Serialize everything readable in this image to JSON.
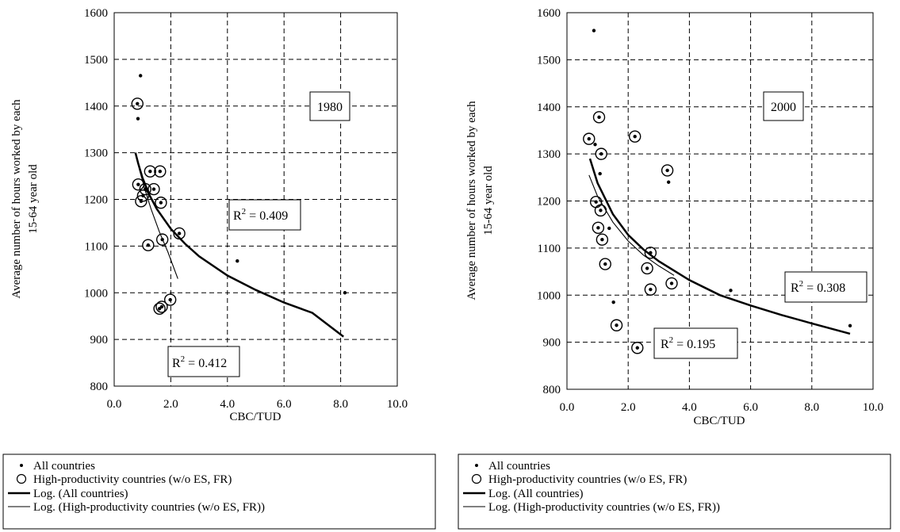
{
  "chart_data": [
    {
      "type": "scatter",
      "annotation": "1980",
      "xlabel": "CBC/TUD",
      "ylabel_lines": [
        "Average number of hours worked by each",
        "15-64 year old"
      ],
      "xlim": [
        0,
        10
      ],
      "ylim": [
        800,
        1600
      ],
      "xticks": [
        "0.0",
        "2.0",
        "4.0",
        "6.0",
        "8.0",
        "10.0"
      ],
      "yticks": [
        "800",
        "900",
        "1000",
        "1100",
        "1200",
        "1300",
        "1400",
        "1500",
        "1600"
      ],
      "grid": true,
      "series": [
        {
          "name": "All countries",
          "marker": "dot",
          "points": [
            [
              0.93,
              1465
            ],
            [
              0.82,
              1405
            ],
            [
              0.84,
              1373
            ],
            [
              0.85,
              1232
            ],
            [
              0.95,
              1196
            ],
            [
              1.02,
              1208
            ],
            [
              1.1,
              1222
            ],
            [
              1.27,
              1260
            ],
            [
              1.4,
              1222
            ],
            [
              1.2,
              1102
            ],
            [
              1.62,
              1260
            ],
            [
              1.65,
              1193
            ],
            [
              1.7,
              1114
            ],
            [
              1.6,
              966
            ],
            [
              1.68,
              970
            ],
            [
              1.98,
              985
            ],
            [
              2.3,
              1127
            ],
            [
              4.35,
              1068
            ],
            [
              8.15,
              1000
            ]
          ]
        },
        {
          "name": "High-productivity countries (w/o ES, FR)",
          "marker": "circle",
          "points": [
            [
              0.82,
              1405
            ],
            [
              0.85,
              1232
            ],
            [
              0.95,
              1196
            ],
            [
              1.02,
              1208
            ],
            [
              1.1,
              1222
            ],
            [
              1.27,
              1260
            ],
            [
              1.4,
              1222
            ],
            [
              1.2,
              1102
            ],
            [
              1.62,
              1260
            ],
            [
              1.65,
              1193
            ],
            [
              1.7,
              1114
            ],
            [
              1.6,
              966
            ],
            [
              1.68,
              970
            ],
            [
              1.98,
              985
            ],
            [
              2.3,
              1127
            ]
          ]
        },
        {
          "name": "Log. (All countries)",
          "line": "thick",
          "points": [
            [
              0.75,
              1300
            ],
            [
              0.85,
              1277
            ],
            [
              1.0,
              1246
            ],
            [
              1.25,
              1209
            ],
            [
              1.5,
              1180
            ],
            [
              2.0,
              1137
            ],
            [
              2.5,
              1105
            ],
            [
              3.0,
              1078
            ],
            [
              4.0,
              1037
            ],
            [
              5.0,
              1006
            ],
            [
              6.0,
              979
            ],
            [
              7.0,
              957
            ],
            [
              8.1,
              906
            ]
          ]
        },
        {
          "name": "Log. (High-productivity countries (w/o ES, FR))",
          "line": "thin",
          "points": [
            [
              0.75,
              1300
            ],
            [
              0.9,
              1262
            ],
            [
              1.1,
              1218
            ],
            [
              1.3,
              1180
            ],
            [
              1.6,
              1130
            ],
            [
              1.9,
              1087
            ],
            [
              2.25,
              1030
            ]
          ]
        }
      ],
      "labels": [
        "R",
        "2",
        " = 0.409",
        "R",
        "2",
        " = 0.412"
      ],
      "legend": [
        "All countries",
        "High-productivity countries (w/o ES, FR)",
        "Log. (All countries)",
        "Log. (High-productivity countries (w/o ES, FR))"
      ]
    },
    {
      "type": "scatter",
      "annotation": "2000",
      "xlabel": "CBC/TUD",
      "ylabel_lines": [
        "Average number of hours worked by each",
        "15-64 year old"
      ],
      "xlim": [
        0,
        10
      ],
      "ylim": [
        800,
        1600
      ],
      "xticks": [
        "0.0",
        "2.0",
        "4.0",
        "6.0",
        "8.0",
        "10.0"
      ],
      "yticks": [
        "800",
        "900",
        "1000",
        "1100",
        "1200",
        "1300",
        "1400",
        "1500",
        "1600"
      ],
      "grid": true,
      "series": [
        {
          "name": "All countries",
          "marker": "dot",
          "points": [
            [
              0.88,
              1562
            ],
            [
              0.72,
              1332
            ],
            [
              0.92,
              1320
            ],
            [
              1.05,
              1378
            ],
            [
              1.08,
              1258
            ],
            [
              1.12,
              1300
            ],
            [
              0.95,
              1198
            ],
            [
              1.02,
              1143
            ],
            [
              1.1,
              1180
            ],
            [
              1.15,
              1118
            ],
            [
              1.25,
              1066
            ],
            [
              1.38,
              1142
            ],
            [
              1.52,
              985
            ],
            [
              1.62,
              936
            ],
            [
              2.22,
              1337
            ],
            [
              2.3,
              888
            ],
            [
              2.62,
              1057
            ],
            [
              2.73,
              1090
            ],
            [
              2.73,
              1012
            ],
            [
              3.28,
              1265
            ],
            [
              3.32,
              1240
            ],
            [
              3.42,
              1025
            ],
            [
              5.35,
              1010
            ],
            [
              9.25,
              935
            ]
          ]
        },
        {
          "name": "High-productivity countries (w/o ES, FR)",
          "marker": "circle",
          "points": [
            [
              0.72,
              1332
            ],
            [
              1.05,
              1378
            ],
            [
              1.12,
              1300
            ],
            [
              0.95,
              1198
            ],
            [
              1.02,
              1143
            ],
            [
              1.1,
              1180
            ],
            [
              1.15,
              1118
            ],
            [
              1.25,
              1066
            ],
            [
              1.62,
              936
            ],
            [
              2.22,
              1337
            ],
            [
              2.3,
              888
            ],
            [
              2.62,
              1057
            ],
            [
              2.73,
              1090
            ],
            [
              2.73,
              1012
            ],
            [
              3.28,
              1265
            ],
            [
              3.42,
              1025
            ]
          ]
        },
        {
          "name": "Log. (All countries)",
          "line": "thick",
          "points": [
            [
              0.75,
              1290
            ],
            [
              1.0,
              1238
            ],
            [
              1.5,
              1172
            ],
            [
              2.0,
              1128
            ],
            [
              2.5,
              1097
            ],
            [
              3.0,
              1072
            ],
            [
              4.0,
              1032
            ],
            [
              5.0,
              1000
            ],
            [
              6.0,
              978
            ],
            [
              7.0,
              958
            ],
            [
              8.0,
              940
            ],
            [
              9.25,
              918
            ]
          ]
        },
        {
          "name": "Log. (High-productivity countries (w/o ES, FR))",
          "line": "thin",
          "points": [
            [
              0.72,
              1255
            ],
            [
              1.0,
              1210
            ],
            [
              1.5,
              1155
            ],
            [
              2.0,
              1115
            ],
            [
              2.5,
              1085
            ],
            [
              3.0,
              1062
            ],
            [
              3.5,
              1042
            ]
          ]
        }
      ],
      "labels": [
        "R",
        "2",
        " = 0.195",
        "R",
        "2",
        " = 0.308"
      ],
      "legend": [
        "All countries",
        "High-productivity countries (w/o ES, FR)",
        "Log. (All countries)",
        "Log. (High-productivity countries (w/o ES, FR))"
      ]
    }
  ]
}
